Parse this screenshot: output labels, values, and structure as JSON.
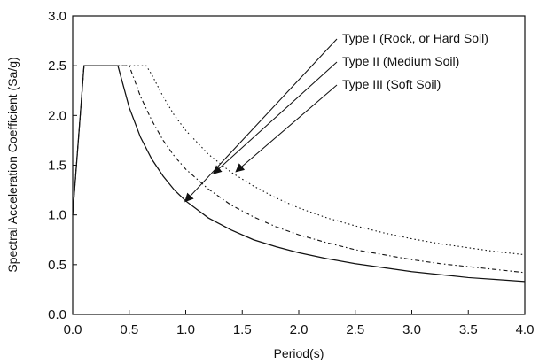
{
  "chart_data": {
    "type": "line",
    "title": "",
    "xlabel": "Period(s)",
    "ylabel": "Spectral Acceleration Coefficient (Sa/g)",
    "xlim": [
      0,
      4
    ],
    "ylim": [
      0,
      3
    ],
    "xticks": [
      "0.0",
      "0.5",
      "1.0",
      "1.5",
      "2.0",
      "2.5",
      "3.0",
      "3.5",
      "4.0"
    ],
    "yticks": [
      "0.0",
      "0.5",
      "1.0",
      "1.5",
      "2.0",
      "2.5",
      "3.0"
    ],
    "grid": false,
    "series": [
      {
        "name": "Type I  (Rock, or Hard Soil)",
        "style": "solid",
        "x": [
          0,
          0.1,
          0.4,
          0.5,
          0.6,
          0.7,
          0.8,
          0.9,
          1.0,
          1.2,
          1.4,
          1.6,
          1.8,
          2.0,
          2.25,
          2.5,
          2.75,
          3.0,
          3.25,
          3.5,
          3.75,
          4.0
        ],
        "values": [
          1.0,
          2.5,
          2.5,
          2.08,
          1.78,
          1.56,
          1.39,
          1.25,
          1.14,
          0.97,
          0.85,
          0.75,
          0.68,
          0.62,
          0.56,
          0.51,
          0.47,
          0.43,
          0.4,
          0.37,
          0.35,
          0.33
        ]
      },
      {
        "name": "Type II (Medium Soil)",
        "style": "dashed",
        "x": [
          0,
          0.1,
          0.5,
          0.6,
          0.7,
          0.8,
          0.9,
          1.0,
          1.2,
          1.4,
          1.6,
          1.8,
          2.0,
          2.25,
          2.5,
          2.75,
          3.0,
          3.25,
          3.5,
          3.75,
          4.0
        ],
        "values": [
          1.0,
          2.5,
          2.5,
          2.19,
          1.95,
          1.75,
          1.59,
          1.46,
          1.26,
          1.1,
          0.98,
          0.88,
          0.8,
          0.72,
          0.65,
          0.6,
          0.55,
          0.51,
          0.48,
          0.45,
          0.42
        ]
      },
      {
        "name": "Type III (Soft Soil)",
        "style": "dotted",
        "x": [
          0,
          0.1,
          0.65,
          0.7,
          0.8,
          0.9,
          1.0,
          1.2,
          1.4,
          1.6,
          1.8,
          2.0,
          2.25,
          2.5,
          2.75,
          3.0,
          3.25,
          3.5,
          3.75,
          4.0
        ],
        "values": [
          1.0,
          2.5,
          2.5,
          2.41,
          2.19,
          2.0,
          1.85,
          1.61,
          1.43,
          1.29,
          1.17,
          1.07,
          0.97,
          0.89,
          0.82,
          0.76,
          0.71,
          0.67,
          0.63,
          0.6
        ]
      }
    ],
    "annotations": [
      {
        "text": "Type I  (Rock, or Hard Soil)",
        "target_x": 1.0,
        "target_y": 1.14
      },
      {
        "text": "Type II (Medium Soil)",
        "target_x": 1.25,
        "target_y": 1.42
      },
      {
        "text": "Type III (Soft Soil)",
        "target_x": 1.45,
        "target_y": 1.44
      }
    ]
  }
}
